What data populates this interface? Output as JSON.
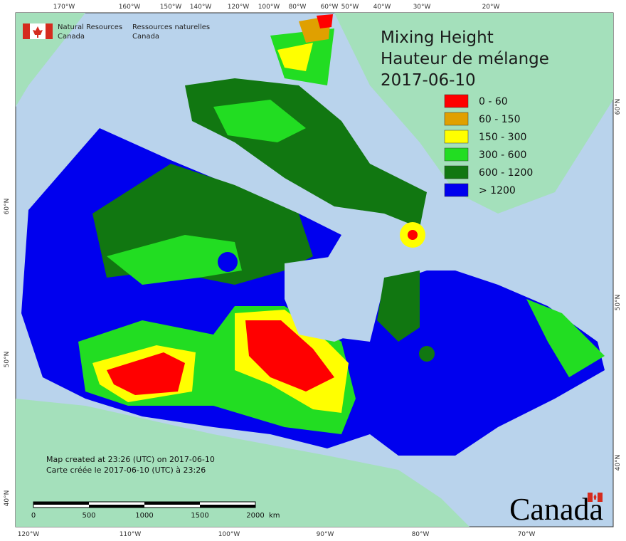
{
  "header": {
    "org_en": "Natural Resources",
    "org_en_2": "Canada",
    "org_fr": "Ressources naturelles",
    "org_fr_2": "Canada"
  },
  "title": [
    "Mixing Height",
    "Hauteur de mélange",
    "2017-06-10"
  ],
  "legend": [
    {
      "label": "0 - 60",
      "color": "#ff0000"
    },
    {
      "label": "60 - 150",
      "color": "#e0a000"
    },
    {
      "label": "150 - 300",
      "color": "#ffff00"
    },
    {
      "label": "300 - 600",
      "color": "#22dd22"
    },
    {
      "label": "600 - 1200",
      "color": "#117711"
    },
    {
      "label": "> 1200",
      "color": "#0000ee"
    }
  ],
  "top_lon_labels": [
    "170°W",
    "160°W",
    "150°W",
    "140°W",
    "120°W",
    "100°W",
    "80°W",
    "60°W",
    "50°W",
    "40°W",
    "30°W",
    "20°W"
  ],
  "bottom_lon_labels": [
    "120°W",
    "110°W",
    "100°W",
    "90°W",
    "80°W",
    "70°W"
  ],
  "left_lat_labels": [
    "60°N",
    "50°N",
    "40°N"
  ],
  "right_lat_labels": [
    "60°N",
    "50°N",
    "40°N"
  ],
  "notes": [
    "Map created at 23:26 (UTC) on 2017-06-10",
    "Carte créée le 2017-06-10 (UTC) à 23:26"
  ],
  "scale": {
    "labels": [
      "0",
      "500",
      "1000",
      "1500",
      "2000"
    ],
    "unit": "km"
  },
  "wordmark": "Canada"
}
